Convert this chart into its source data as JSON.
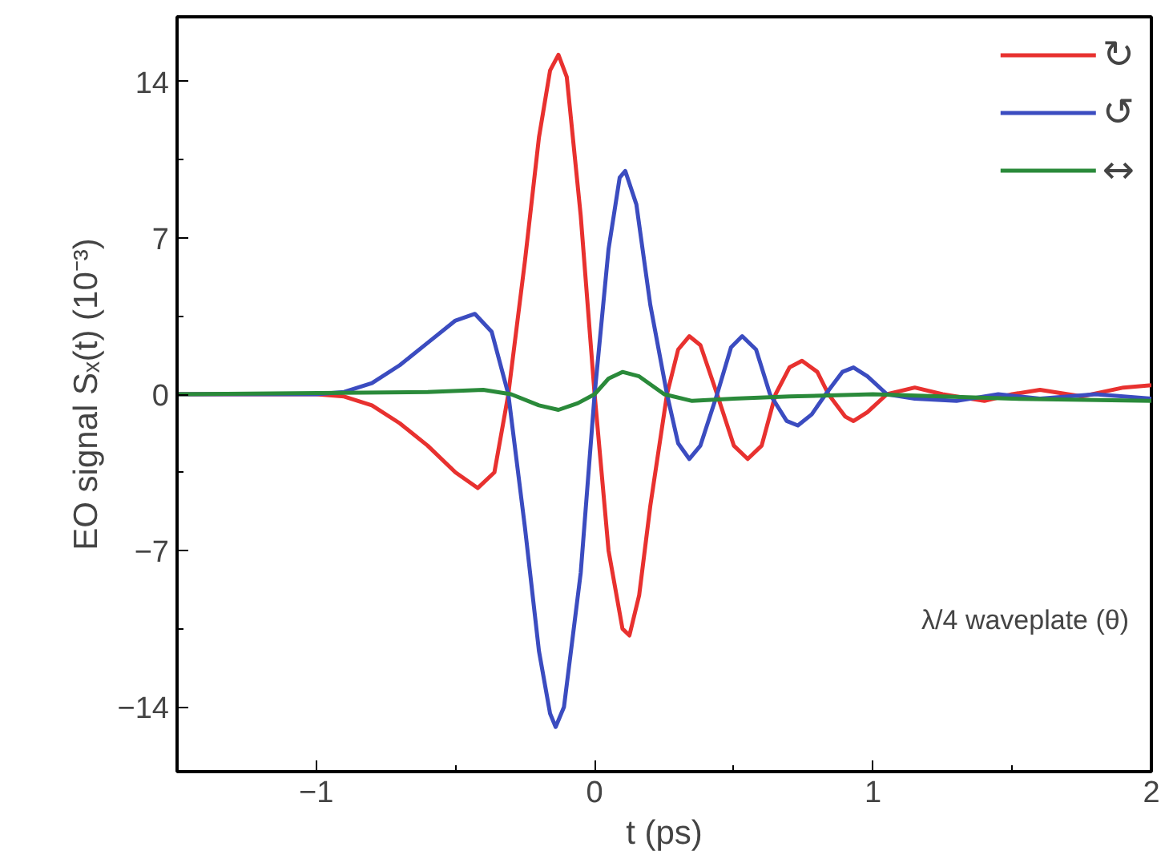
{
  "chart_data": {
    "type": "line",
    "xlabel": "t (ps)",
    "ylabel": "EO signal Sₓ(t) (10⁻³)",
    "annotations": [
      "λ/4 waveplate (θ)"
    ],
    "xlim": [
      -1.5,
      2
    ],
    "ylim": [
      -16.9,
      16.9
    ],
    "xticks": [
      -1,
      {
        "value": -0.5,
        "label": null
      },
      0,
      {
        "value": 0.5,
        "label": null
      },
      1,
      {
        "value": 1.5,
        "label": null
      },
      2
    ],
    "yticks": [
      -14,
      {
        "value": -10.5,
        "label": null
      },
      -7,
      {
        "value": -3.5,
        "label": null
      },
      0,
      {
        "value": 3.5,
        "label": null
      },
      7,
      {
        "value": 10.5,
        "label": null
      },
      14
    ],
    "grid": false,
    "legend": "top right",
    "marker": "none",
    "line_style": "solid",
    "series": [
      {
        "name": "↻",
        "color": "#e8312f",
        "x": [
          -1.5,
          -1.0,
          -0.9,
          -0.8,
          -0.7,
          -0.6,
          -0.5,
          -0.42,
          -0.36,
          -0.31,
          -0.25,
          -0.2,
          -0.16,
          -0.13,
          -0.1,
          -0.05,
          0,
          0.05,
          0.1,
          0.125,
          0.16,
          0.2,
          0.26,
          0.3,
          0.34,
          0.38,
          0.44,
          0.5,
          0.55,
          0.6,
          0.65,
          0.7,
          0.745,
          0.8,
          0.84,
          0.9,
          0.93,
          0.98,
          1.05,
          1.15,
          1.25,
          1.4,
          1.5,
          1.6,
          1.75,
          1.9,
          2.0
        ],
        "values": [
          0,
          0,
          -0.1,
          -0.5,
          -1.3,
          -2.3,
          -3.5,
          -4.2,
          -3.5,
          0,
          6,
          11.5,
          14.5,
          15.2,
          14.2,
          8,
          0,
          -7,
          -10.5,
          -10.8,
          -9,
          -5,
          0,
          2,
          2.6,
          2.2,
          0,
          -2.3,
          -2.9,
          -2.3,
          0,
          1.2,
          1.5,
          1.0,
          0,
          -1.0,
          -1.2,
          -0.8,
          0,
          0.3,
          0,
          -0.3,
          0,
          0.2,
          -0.1,
          0.3,
          0.4
        ]
      },
      {
        "name": "↺",
        "color": "#3b4cc0",
        "x": [
          -1.5,
          -1.0,
          -0.9,
          -0.8,
          -0.7,
          -0.6,
          -0.5,
          -0.43,
          -0.37,
          -0.31,
          -0.25,
          -0.2,
          -0.16,
          -0.14,
          -0.11,
          -0.05,
          0,
          0.05,
          0.09,
          0.11,
          0.15,
          0.2,
          0.26,
          0.3,
          0.34,
          0.38,
          0.44,
          0.49,
          0.53,
          0.58,
          0.63,
          0.69,
          0.73,
          0.78,
          0.83,
          0.89,
          0.93,
          0.98,
          1.05,
          1.15,
          1.3,
          1.45,
          1.6,
          1.8,
          2.0
        ],
        "values": [
          0,
          0,
          0.1,
          0.5,
          1.3,
          2.3,
          3.3,
          3.6,
          2.8,
          0,
          -6,
          -11.5,
          -14.3,
          -14.9,
          -14,
          -8,
          0,
          6.5,
          9.7,
          10,
          8.5,
          4,
          0,
          -2.2,
          -2.9,
          -2.3,
          0,
          2.1,
          2.6,
          2,
          0,
          -1.2,
          -1.4,
          -0.9,
          0,
          1.0,
          1.2,
          0.8,
          0,
          -0.2,
          -0.3,
          0,
          -0.2,
          0,
          -0.2
        ]
      },
      {
        "name": "↔",
        "color": "#2a8a3a",
        "x": [
          -1.5,
          -0.6,
          -0.4,
          -0.3,
          -0.2,
          -0.13,
          -0.06,
          0,
          0.05,
          0.1,
          0.16,
          0.25,
          0.35,
          0.5,
          0.7,
          1.0,
          1.5,
          2.0
        ],
        "values": [
          0,
          0.1,
          0.2,
          0,
          -0.5,
          -0.7,
          -0.4,
          0,
          0.7,
          1.0,
          0.8,
          0,
          -0.3,
          -0.2,
          -0.1,
          0,
          -0.2,
          -0.3
        ]
      }
    ]
  }
}
